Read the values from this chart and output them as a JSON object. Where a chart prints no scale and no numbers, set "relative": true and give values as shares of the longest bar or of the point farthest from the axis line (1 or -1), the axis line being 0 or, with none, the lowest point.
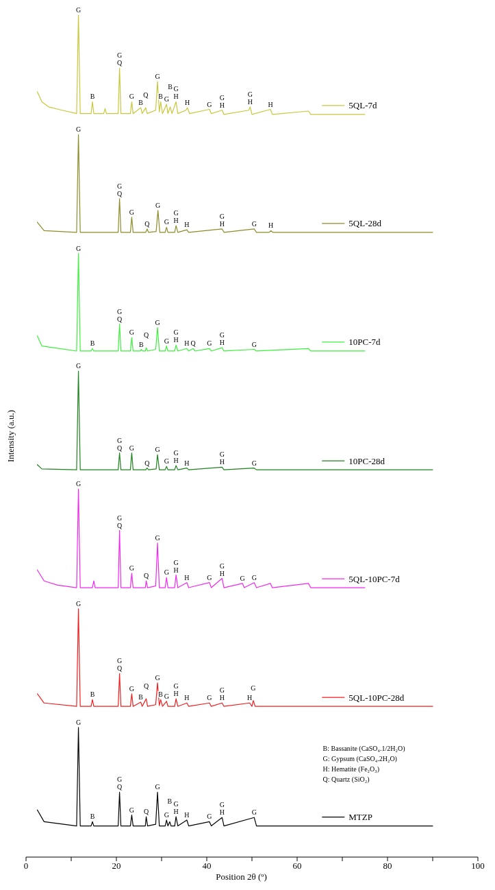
{
  "chart_data": {
    "type": "line",
    "relative": true,
    "xlabel": "Position 2θ (º)",
    "ylabel": "Intensity (a.u.)",
    "xlim": [
      0,
      100
    ],
    "xticks": [
      0,
      {
        "value": 10,
        "label": null
      },
      20,
      {
        "value": 30,
        "label": null
      },
      40,
      {
        "value": 50,
        "label": null
      },
      60,
      {
        "value": 70,
        "label": null
      },
      80,
      {
        "value": 90,
        "label": null
      },
      100
    ],
    "legend": "right",
    "series": [
      {
        "name": "5QL-7d",
        "color": "#c8c83c",
        "x": [
          2.5,
          3.5,
          5,
          8,
          11.2,
          11.6,
          12,
          14.4,
          14.7,
          15,
          17.2,
          17.5,
          17.8,
          20.4,
          20.7,
          21,
          23.1,
          23.4,
          23.7,
          25.4,
          25.7,
          26.5,
          26.8,
          28.7,
          29.1,
          29.5,
          29.8,
          30.2,
          31.1,
          31.4,
          31.9,
          32.3,
          33.2,
          33.6,
          35.4,
          35.7,
          36.2,
          40.6,
          41,
          43.4,
          43.8,
          49.3,
          49.6,
          50,
          54.1,
          54.5,
          62.5,
          63,
          75
        ],
        "values": [
          0.909,
          0.897,
          0.891,
          0.887,
          0.883,
          1.0,
          0.883,
          0.883,
          0.897,
          0.883,
          0.883,
          0.889,
          0.883,
          0.883,
          0.937,
          0.883,
          0.883,
          0.897,
          0.883,
          0.89,
          0.883,
          0.89,
          0.883,
          0.887,
          0.921,
          0.885,
          0.897,
          0.883,
          0.894,
          0.883,
          0.891,
          0.883,
          0.897,
          0.883,
          0.887,
          0.89,
          0.883,
          0.888,
          0.883,
          0.887,
          0.882,
          0.887,
          0.891,
          0.882,
          0.888,
          0.882,
          0.886,
          0.882,
          0.882
        ]
      },
      {
        "name": "5QL-28d",
        "color": "#8c8c28",
        "x": [
          2.5,
          4,
          11.2,
          11.6,
          12,
          20.4,
          20.7,
          21,
          23.1,
          23.4,
          23.7,
          26.5,
          26.8,
          27.1,
          28.8,
          29.2,
          29.6,
          30.8,
          31.1,
          31.4,
          32.9,
          33.2,
          33.6,
          35.6,
          36,
          43.4,
          43.8,
          50.5,
          51,
          53.8,
          54.2,
          54.6,
          90
        ],
        "values": [
          0.754,
          0.744,
          0.742,
          0.858,
          0.742,
          0.742,
          0.782,
          0.742,
          0.742,
          0.76,
          0.742,
          0.742,
          0.746,
          0.742,
          0.743,
          0.768,
          0.742,
          0.742,
          0.748,
          0.742,
          0.742,
          0.75,
          0.742,
          0.745,
          0.742,
          0.746,
          0.742,
          0.746,
          0.742,
          0.742,
          0.744,
          0.742,
          0.742
        ]
      },
      {
        "name": "10PC-7d",
        "color": "#3cf03c",
        "x": [
          2.5,
          3.5,
          11.2,
          11.6,
          12,
          14.4,
          14.7,
          15,
          20.4,
          20.7,
          21,
          23.1,
          23.4,
          23.7,
          25.3,
          25.5,
          25.8,
          26.4,
          26.6,
          26.9,
          28.7,
          29.1,
          29.5,
          30.8,
          31.1,
          31.4,
          32.9,
          33.2,
          33.6,
          35.6,
          36,
          37.0,
          37.4,
          40.6,
          41,
          43.4,
          43.8,
          50.5,
          51,
          62.5,
          63,
          75
        ],
        "values": [
          0.619,
          0.607,
          0.601,
          0.717,
          0.601,
          0.601,
          0.604,
          0.601,
          0.601,
          0.633,
          0.601,
          0.601,
          0.617,
          0.601,
          0.601,
          0.603,
          0.601,
          0.601,
          0.605,
          0.601,
          0.603,
          0.629,
          0.601,
          0.601,
          0.607,
          0.601,
          0.601,
          0.608,
          0.601,
          0.604,
          0.601,
          0.604,
          0.601,
          0.604,
          0.601,
          0.605,
          0.601,
          0.603,
          0.601,
          0.604,
          0.601,
          0.601
        ]
      },
      {
        "name": "10PC-28d",
        "color": "#1e821e",
        "x": [
          2.5,
          3.5,
          11.2,
          11.6,
          12,
          20.4,
          20.7,
          21,
          23.1,
          23.4,
          23.7,
          26.5,
          26.8,
          27.1,
          28.8,
          29.1,
          29.5,
          30.8,
          31.1,
          31.4,
          32.9,
          33.2,
          33.6,
          35.6,
          36,
          43.4,
          43.8,
          50.5,
          51,
          90
        ],
        "values": [
          0.466,
          0.461,
          0.46,
          0.577,
          0.46,
          0.46,
          0.48,
          0.46,
          0.46,
          0.48,
          0.46,
          0.46,
          0.462,
          0.46,
          0.461,
          0.478,
          0.46,
          0.46,
          0.464,
          0.46,
          0.46,
          0.465,
          0.46,
          0.462,
          0.46,
          0.463,
          0.46,
          0.462,
          0.46,
          0.46
        ]
      },
      {
        "name": "5QL-10PC-7d",
        "color": "#f028f0",
        "x": [
          2.5,
          4,
          7,
          11.2,
          11.6,
          12,
          14.7,
          15,
          15.3,
          20.4,
          20.7,
          21,
          23.1,
          23.4,
          23.7,
          26.4,
          26.6,
          26.9,
          28.7,
          29.1,
          29.5,
          30.8,
          31.1,
          31.4,
          32.9,
          33.2,
          33.6,
          35.6,
          36,
          40.6,
          41,
          43.4,
          43.8,
          47.9,
          48.3,
          50.5,
          51,
          54.1,
          54.5,
          62.5,
          63,
          75
        ],
        "values": [
          0.341,
          0.328,
          0.323,
          0.32,
          0.437,
          0.32,
          0.32,
          0.328,
          0.32,
          0.32,
          0.388,
          0.32,
          0.32,
          0.337,
          0.32,
          0.32,
          0.328,
          0.32,
          0.322,
          0.373,
          0.32,
          0.32,
          0.332,
          0.32,
          0.32,
          0.335,
          0.32,
          0.326,
          0.32,
          0.326,
          0.32,
          0.331,
          0.32,
          0.325,
          0.32,
          0.326,
          0.32,
          0.325,
          0.32,
          0.325,
          0.32,
          0.32
        ]
      },
      {
        "name": "5QL-10PC-28d",
        "color": "#f01e1e",
        "x": [
          2.5,
          4,
          11.2,
          11.6,
          12,
          14.4,
          14.7,
          15,
          20.4,
          20.7,
          21,
          23.1,
          23.4,
          23.7,
          25.4,
          25.7,
          26.6,
          26.9,
          28.7,
          29.1,
          29.5,
          29.8,
          30.2,
          31.1,
          31.4,
          32.9,
          33.2,
          33.6,
          35.6,
          36,
          40.6,
          41,
          43.4,
          43.8,
          49.5,
          50,
          50.3,
          50.7,
          90
        ],
        "values": [
          0.194,
          0.183,
          0.179,
          0.295,
          0.179,
          0.179,
          0.187,
          0.179,
          0.179,
          0.218,
          0.179,
          0.179,
          0.194,
          0.179,
          0.184,
          0.179,
          0.188,
          0.179,
          0.181,
          0.207,
          0.18,
          0.187,
          0.179,
          0.185,
          0.179,
          0.179,
          0.188,
          0.179,
          0.183,
          0.179,
          0.183,
          0.179,
          0.183,
          0.179,
          0.183,
          0.179,
          0.186,
          0.179,
          0.179
        ]
      },
      {
        "name": "MTZP",
        "color": "#000000",
        "x": [
          2.5,
          4,
          11.2,
          11.6,
          12,
          14.4,
          14.7,
          15,
          20.4,
          20.7,
          21,
          23.1,
          23.4,
          23.7,
          26.4,
          26.6,
          26.9,
          28.7,
          29.1,
          29.5,
          30.8,
          31.1,
          31.4,
          31.8,
          32.1,
          32.9,
          33.2,
          33.6,
          35.6,
          36,
          40.6,
          41,
          43.4,
          43.8,
          50.5,
          51,
          90
        ],
        "values": [
          0.056,
          0.042,
          0.037,
          0.154,
          0.037,
          0.037,
          0.042,
          0.037,
          0.037,
          0.077,
          0.037,
          0.037,
          0.05,
          0.037,
          0.037,
          0.048,
          0.037,
          0.039,
          0.077,
          0.037,
          0.037,
          0.044,
          0.037,
          0.042,
          0.037,
          0.037,
          0.048,
          0.037,
          0.044,
          0.037,
          0.042,
          0.037,
          0.047,
          0.037,
          0.047,
          0.037,
          0.037
        ]
      }
    ],
    "annotations": [
      {
        "text": "G",
        "x": 11.6,
        "y": 1.0
      },
      {
        "text": "B",
        "x": 14.7,
        "y": 0.897
      },
      {
        "text": "G",
        "x": 20.7,
        "y": 0.937
      },
      {
        "text": "Q",
        "x": 20.7,
        "y": 0.937
      },
      {
        "text": "G",
        "x": 23.4,
        "y": 0.897
      },
      {
        "text": "B",
        "x": 25.4,
        "y": 0.89
      },
      {
        "text": "Q",
        "x": 26.5,
        "y": 0.89
      },
      {
        "text": "G",
        "x": 29.1,
        "y": 0.921
      },
      {
        "text": "B",
        "x": 29.8,
        "y": 0.897
      },
      {
        "text": "G",
        "x": 31.1,
        "y": 0.894
      },
      {
        "text": "B",
        "x": 31.9,
        "y": 0.891
      },
      {
        "text": "G",
        "x": 33.2,
        "y": 0.897
      },
      {
        "text": "H",
        "x": 33.2,
        "y": 0.897
      },
      {
        "text": "H",
        "x": 35.7,
        "y": 0.89
      },
      {
        "text": "G",
        "x": 40.6,
        "y": 0.888
      },
      {
        "text": "G",
        "x": 43.4,
        "y": 0.887
      },
      {
        "text": "H",
        "x": 43.4,
        "y": 0.887
      },
      {
        "text": "G",
        "x": 49.6,
        "y": 0.891
      },
      {
        "text": "H",
        "x": 49.6,
        "y": 0.891
      },
      {
        "text": "H",
        "x": 54.1,
        "y": 0.888
      },
      {
        "text": "G",
        "x": 11.6,
        "y": 0.858
      },
      {
        "text": "G",
        "x": 20.7,
        "y": 0.782
      },
      {
        "text": "Q",
        "x": 20.7,
        "y": 0.782
      },
      {
        "text": "G",
        "x": 23.4,
        "y": 0.76
      },
      {
        "text": "Q",
        "x": 26.8,
        "y": 0.746
      },
      {
        "text": "G",
        "x": 29.2,
        "y": 0.768
      },
      {
        "text": "G",
        "x": 31.1,
        "y": 0.748
      },
      {
        "text": "G",
        "x": 33.2,
        "y": 0.75
      },
      {
        "text": "H",
        "x": 33.2,
        "y": 0.75
      },
      {
        "text": "H",
        "x": 35.6,
        "y": 0.745
      },
      {
        "text": "G",
        "x": 43.4,
        "y": 0.746
      },
      {
        "text": "H",
        "x": 43.4,
        "y": 0.746
      },
      {
        "text": "G",
        "x": 50.5,
        "y": 0.746
      },
      {
        "text": "H",
        "x": 54.2,
        "y": 0.744
      },
      {
        "text": "G",
        "x": 11.6,
        "y": 0.717
      },
      {
        "text": "B",
        "x": 14.7,
        "y": 0.604
      },
      {
        "text": "G",
        "x": 20.7,
        "y": 0.633
      },
      {
        "text": "Q",
        "x": 20.7,
        "y": 0.633
      },
      {
        "text": "G",
        "x": 23.4,
        "y": 0.617
      },
      {
        "text": "B",
        "x": 25.5,
        "y": 0.603
      },
      {
        "text": "Q",
        "x": 26.6,
        "y": 0.605
      },
      {
        "text": "G",
        "x": 29.1,
        "y": 0.629
      },
      {
        "text": "G",
        "x": 31.1,
        "y": 0.607
      },
      {
        "text": "G",
        "x": 33.2,
        "y": 0.608
      },
      {
        "text": "H",
        "x": 33.2,
        "y": 0.608
      },
      {
        "text": "H",
        "x": 35.6,
        "y": 0.604
      },
      {
        "text": "Q",
        "x": 37.0,
        "y": 0.604
      },
      {
        "text": "G",
        "x": 40.6,
        "y": 0.604
      },
      {
        "text": "G",
        "x": 43.4,
        "y": 0.605
      },
      {
        "text": "H",
        "x": 43.4,
        "y": 0.605
      },
      {
        "text": "G",
        "x": 50.5,
        "y": 0.603
      },
      {
        "text": "G",
        "x": 11.6,
        "y": 0.577
      },
      {
        "text": "G",
        "x": 20.7,
        "y": 0.48
      },
      {
        "text": "Q",
        "x": 20.7,
        "y": 0.48
      },
      {
        "text": "G",
        "x": 23.4,
        "y": 0.48
      },
      {
        "text": "Q",
        "x": 26.8,
        "y": 0.462
      },
      {
        "text": "G",
        "x": 29.1,
        "y": 0.478
      },
      {
        "text": "G",
        "x": 31.1,
        "y": 0.464
      },
      {
        "text": "G",
        "x": 33.2,
        "y": 0.465
      },
      {
        "text": "H",
        "x": 33.2,
        "y": 0.465
      },
      {
        "text": "H",
        "x": 35.6,
        "y": 0.462
      },
      {
        "text": "G",
        "x": 43.4,
        "y": 0.463
      },
      {
        "text": "H",
        "x": 43.4,
        "y": 0.463
      },
      {
        "text": "G",
        "x": 50.5,
        "y": 0.462
      },
      {
        "text": "G",
        "x": 11.6,
        "y": 0.437
      },
      {
        "text": "G",
        "x": 20.7,
        "y": 0.388
      },
      {
        "text": "Q",
        "x": 20.7,
        "y": 0.388
      },
      {
        "text": "G",
        "x": 23.4,
        "y": 0.337
      },
      {
        "text": "Q",
        "x": 26.6,
        "y": 0.328
      },
      {
        "text": "G",
        "x": 29.1,
        "y": 0.373
      },
      {
        "text": "G",
        "x": 31.1,
        "y": 0.332
      },
      {
        "text": "G",
        "x": 33.2,
        "y": 0.335
      },
      {
        "text": "H",
        "x": 33.2,
        "y": 0.335
      },
      {
        "text": "H",
        "x": 35.6,
        "y": 0.326
      },
      {
        "text": "G",
        "x": 40.6,
        "y": 0.326
      },
      {
        "text": "G",
        "x": 43.4,
        "y": 0.331
      },
      {
        "text": "H",
        "x": 43.4,
        "y": 0.331
      },
      {
        "text": "G",
        "x": 47.9,
        "y": 0.325
      },
      {
        "text": "G",
        "x": 50.5,
        "y": 0.326
      },
      {
        "text": "G",
        "x": 11.6,
        "y": 0.295
      },
      {
        "text": "B",
        "x": 14.7,
        "y": 0.187
      },
      {
        "text": "G",
        "x": 20.7,
        "y": 0.218
      },
      {
        "text": "Q",
        "x": 20.7,
        "y": 0.218
      },
      {
        "text": "G",
        "x": 23.4,
        "y": 0.194
      },
      {
        "text": "B",
        "x": 25.4,
        "y": 0.184
      },
      {
        "text": "Q",
        "x": 26.6,
        "y": 0.188
      },
      {
        "text": "G",
        "x": 29.1,
        "y": 0.207
      },
      {
        "text": "B",
        "x": 29.8,
        "y": 0.187
      },
      {
        "text": "G",
        "x": 31.1,
        "y": 0.185
      },
      {
        "text": "G",
        "x": 33.2,
        "y": 0.188
      },
      {
        "text": "H",
        "x": 33.2,
        "y": 0.188
      },
      {
        "text": "H",
        "x": 35.6,
        "y": 0.183
      },
      {
        "text": "G",
        "x": 40.6,
        "y": 0.183
      },
      {
        "text": "G",
        "x": 43.4,
        "y": 0.183
      },
      {
        "text": "H",
        "x": 43.4,
        "y": 0.183
      },
      {
        "text": "H",
        "x": 49.5,
        "y": 0.183
      },
      {
        "text": "G",
        "x": 50.3,
        "y": 0.186
      },
      {
        "text": "G",
        "x": 11.6,
        "y": 0.154
      },
      {
        "text": "B",
        "x": 14.7,
        "y": 0.042
      },
      {
        "text": "G",
        "x": 20.7,
        "y": 0.077
      },
      {
        "text": "Q",
        "x": 20.7,
        "y": 0.077
      },
      {
        "text": "G",
        "x": 23.4,
        "y": 0.05
      },
      {
        "text": "Q",
        "x": 26.6,
        "y": 0.048
      },
      {
        "text": "G",
        "x": 29.1,
        "y": 0.077
      },
      {
        "text": "G",
        "x": 31.1,
        "y": 0.044
      },
      {
        "text": "B",
        "x": 31.8,
        "y": 0.042
      },
      {
        "text": "G",
        "x": 33.2,
        "y": 0.048
      },
      {
        "text": "H",
        "x": 33.2,
        "y": 0.048
      },
      {
        "text": "H",
        "x": 35.6,
        "y": 0.044
      },
      {
        "text": "G",
        "x": 40.6,
        "y": 0.042
      },
      {
        "text": "G",
        "x": 43.4,
        "y": 0.047
      },
      {
        "text": "H",
        "x": 43.4,
        "y": 0.047
      },
      {
        "text": "G",
        "x": 50.5,
        "y": 0.047
      },
      "B: Bassanite (CaSO₄.1/2H₂O)",
      "G: Gypsum (CaSO₄.2H₂O)",
      "H: Hematite (Fe₂O₃)",
      "Q: Quartz (SiO₂)"
    ]
  }
}
